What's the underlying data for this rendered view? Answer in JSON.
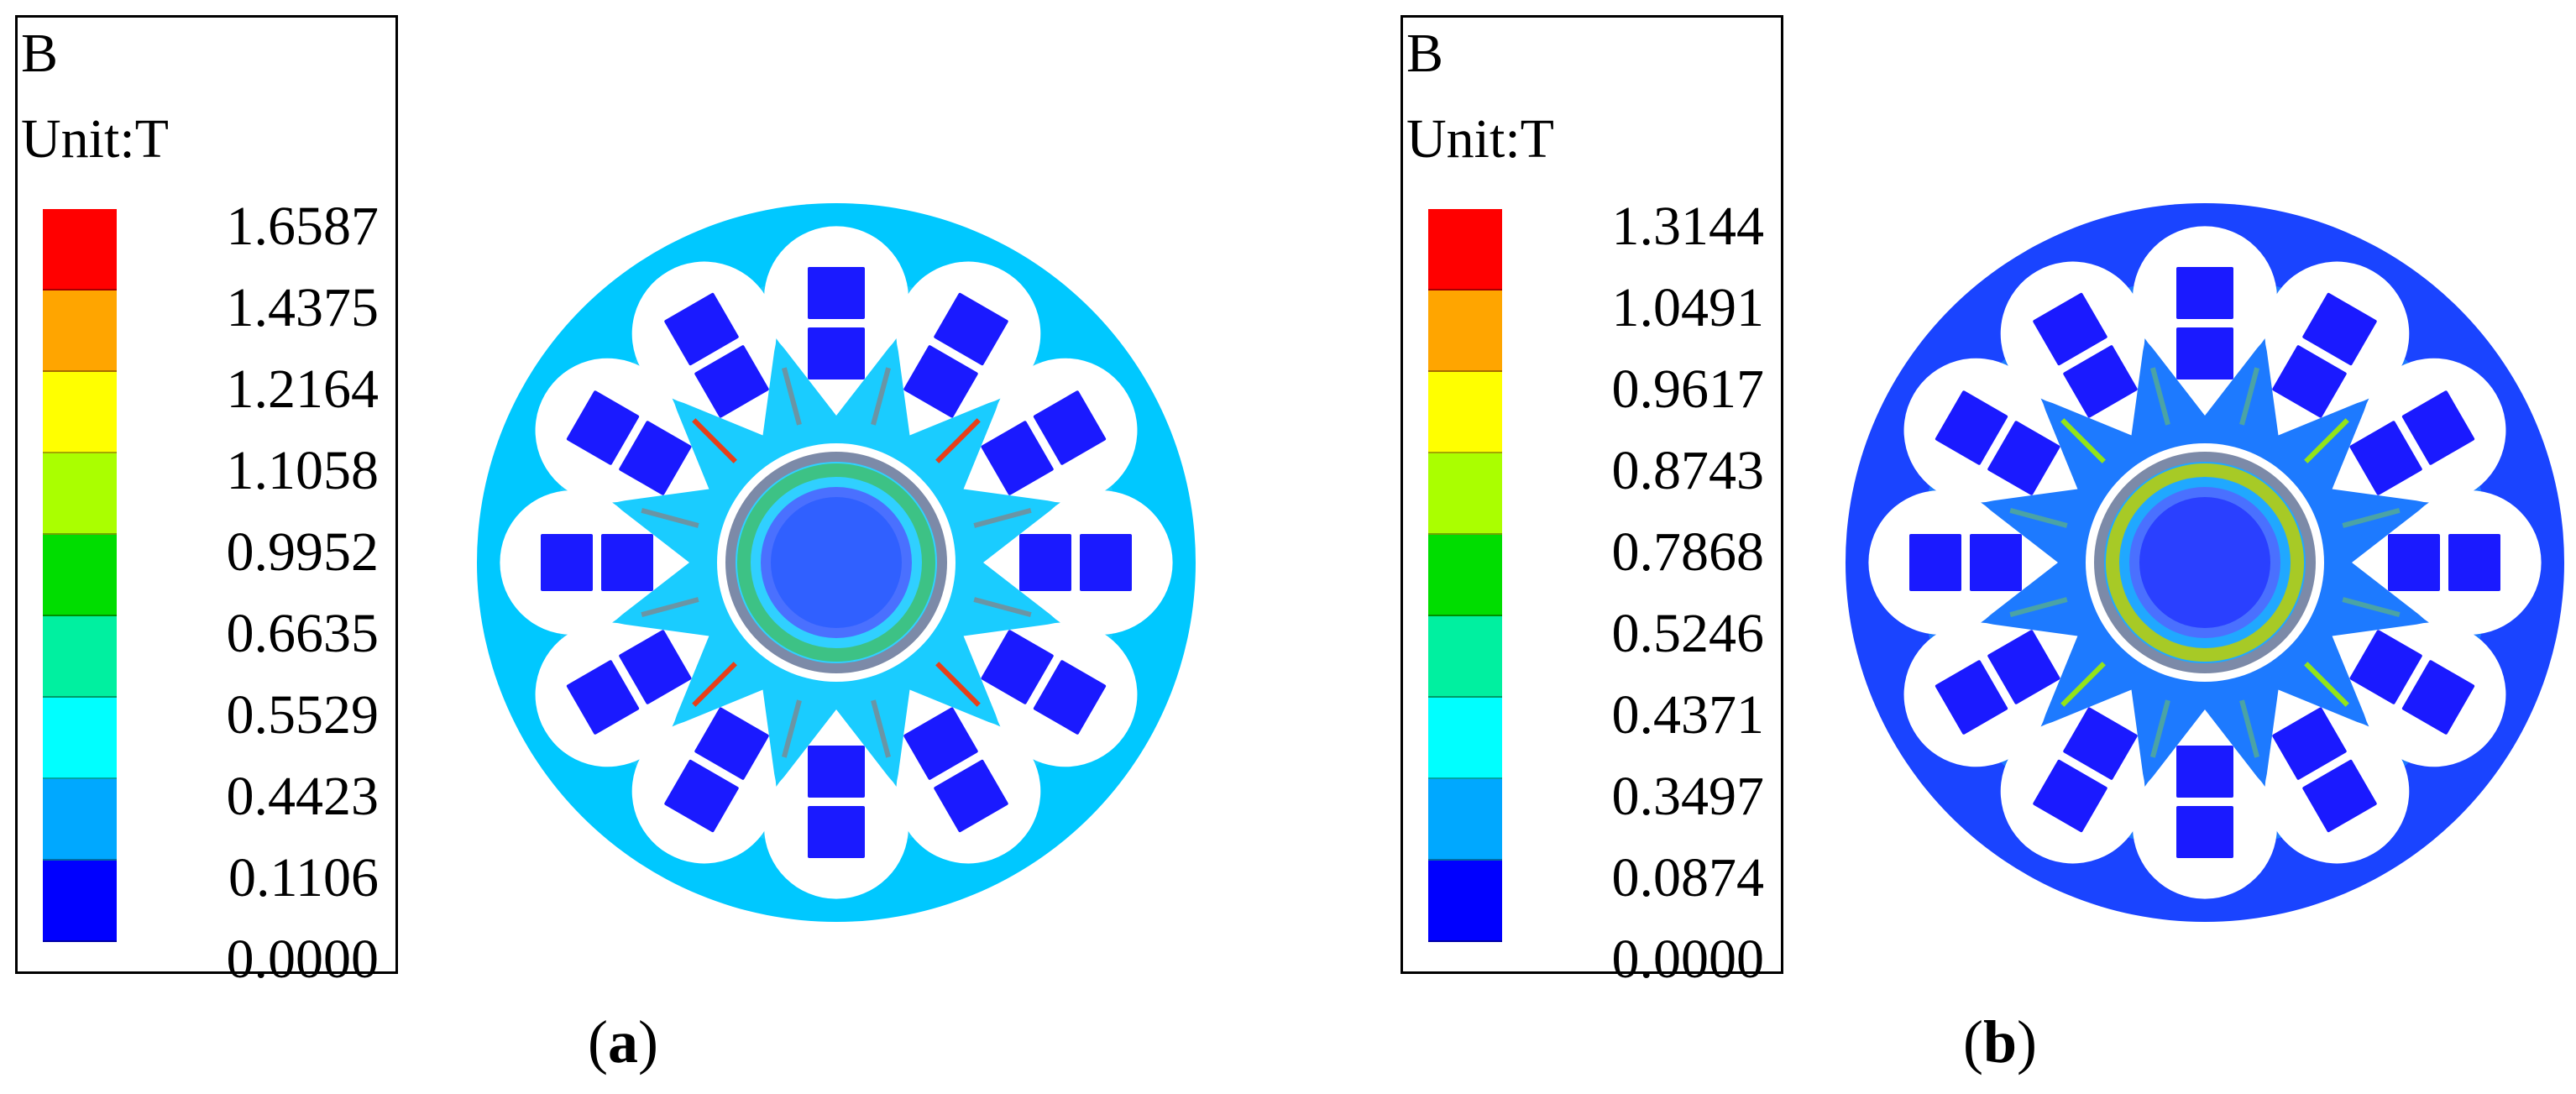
{
  "panels": [
    {
      "id": "a",
      "caption_label": "a",
      "legend": {
        "quantity": "B",
        "unit": "Unit:T",
        "ticks": [
          "1.6587",
          "1.4375",
          "1.2164",
          "1.1058",
          "0.9952",
          "0.6635",
          "0.5529",
          "0.4423",
          "0.1106",
          "0.0000"
        ],
        "colors": [
          "#ff0000",
          "#ffa500",
          "#ffff00",
          "#aaff00",
          "#00dd00",
          "#00f0a0",
          "#00ffff",
          "#00a8ff",
          "#0000ff"
        ]
      },
      "map_palette": {
        "back_iron": "#00c8ff",
        "slot_gap": "#ffffff",
        "coil": "#1a1aff",
        "tooth": "#30d0ff",
        "hot": "#ff3000",
        "shaft": "#3060ff",
        "ring": "#40c070"
      }
    },
    {
      "id": "b",
      "caption_label": "b",
      "legend": {
        "quantity": "B",
        "unit": "Unit:T",
        "ticks": [
          "1.3144",
          "1.0491",
          "0.9617",
          "0.8743",
          "0.7868",
          "0.5246",
          "0.4371",
          "0.3497",
          "0.0874",
          "0.0000"
        ],
        "colors": [
          "#ff0000",
          "#ffa500",
          "#ffff00",
          "#aaff00",
          "#00dd00",
          "#00f0a0",
          "#00ffff",
          "#00a8ff",
          "#0000ff"
        ]
      },
      "map_palette": {
        "back_iron": "#1a44ff",
        "slot_gap": "#ffffff",
        "coil": "#1a1aff",
        "tooth": "#20a8ff",
        "hot": "#a0f000",
        "shaft": "#2a40ff",
        "ring": "#c0d000"
      }
    }
  ]
}
